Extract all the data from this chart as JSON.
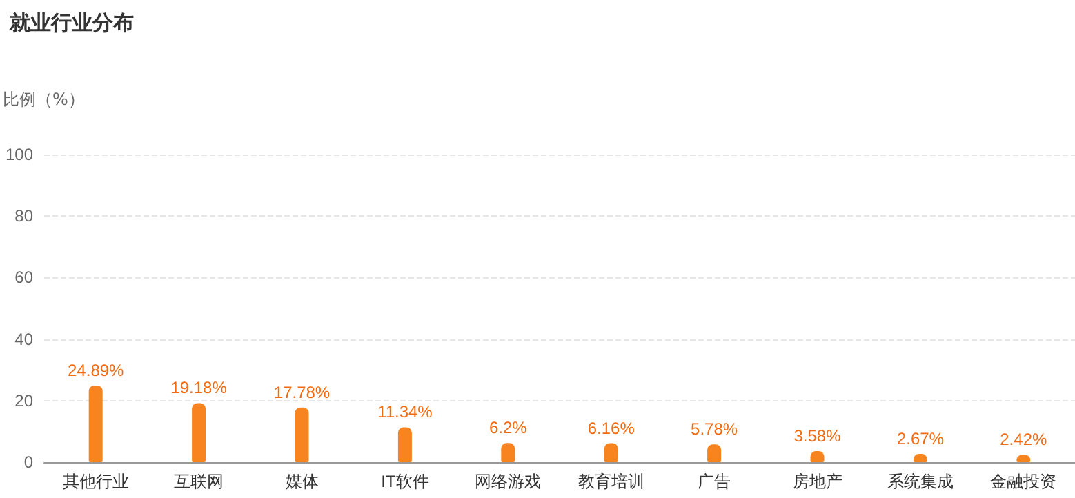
{
  "chart_data": {
    "type": "bar",
    "title": "就业行业分布",
    "ylabel": "比例（%）",
    "categories": [
      "其他行业",
      "互联网",
      "媒体",
      "IT软件",
      "网络游戏",
      "教育培训",
      "广告",
      "房地产",
      "系统集成",
      "金融投资"
    ],
    "values": [
      24.89,
      19.18,
      17.78,
      11.34,
      6.2,
      6.16,
      5.78,
      3.58,
      2.67,
      2.42
    ],
    "value_labels": [
      "24.89%",
      "19.18%",
      "17.78%",
      "11.34%",
      "6.2%",
      "6.16%",
      "5.78%",
      "3.58%",
      "2.67%",
      "2.42%"
    ],
    "color": "#f7841f",
    "ylim": [
      0,
      100
    ],
    "yticks": [
      0,
      20,
      40,
      60,
      80,
      100
    ],
    "grid": "y"
  }
}
